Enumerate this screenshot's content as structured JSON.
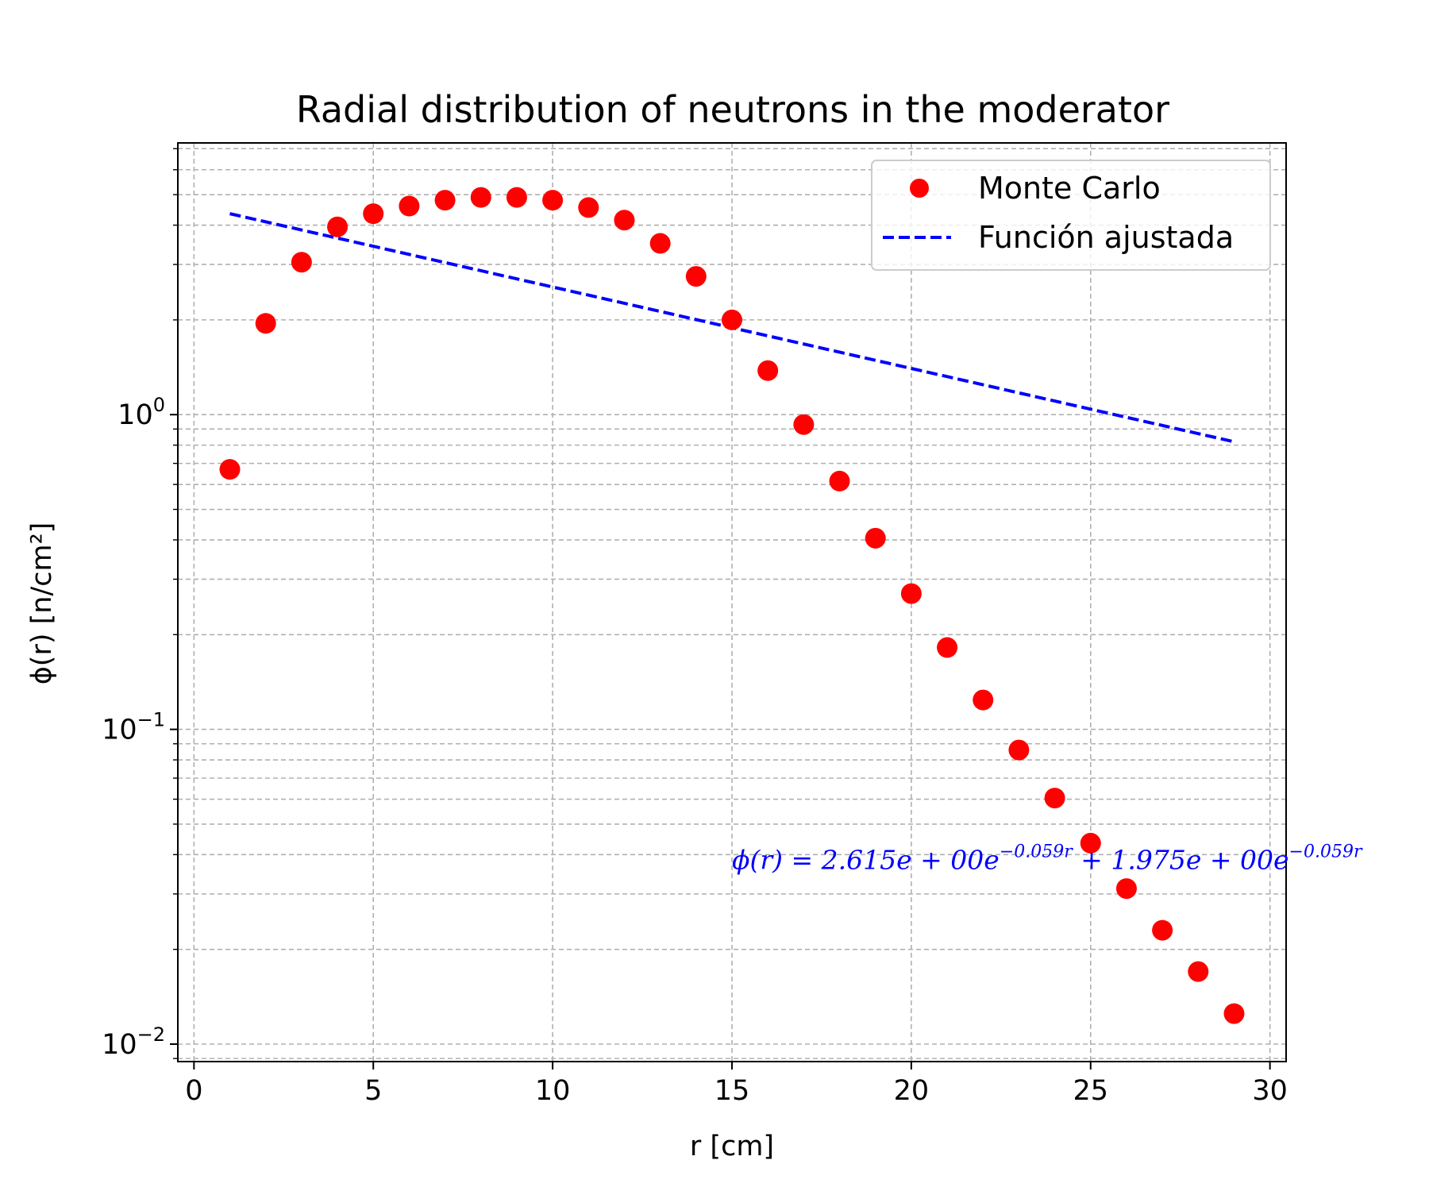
{
  "chart_data": {
    "type": "scatter",
    "title": "Radial distribution of neutrons in the moderator",
    "xlabel": "r [cm]",
    "ylabel": "ϕ(r) [n/cm²]",
    "xlim": [
      -0.45,
      30.45
    ],
    "ylim": [
      0.0088,
      7.3
    ],
    "yscale": "log",
    "grid": true,
    "legend_position": "top-right",
    "x_ticks": [
      0,
      5,
      10,
      15,
      20,
      25,
      30
    ],
    "x_tick_labels": [
      "0",
      "5",
      "10",
      "15",
      "20",
      "25",
      "30"
    ],
    "y_ticks": [
      0.01,
      0.1,
      1
    ],
    "y_tick_labels": [
      "10",
      "10",
      "10"
    ],
    "y_tick_exponents": [
      "−2",
      "−1",
      "0"
    ],
    "series": [
      {
        "name": "Monte Carlo",
        "kind": "points",
        "color": "#ff0000",
        "x": [
          1,
          2,
          3,
          4,
          5,
          6,
          7,
          8,
          9,
          10,
          11,
          12,
          13,
          14,
          15,
          16,
          17,
          18,
          19,
          20,
          21,
          22,
          23,
          24,
          25,
          26,
          27,
          28,
          29
        ],
        "y": [
          0.67,
          1.95,
          3.05,
          3.95,
          4.35,
          4.6,
          4.8,
          4.9,
          4.9,
          4.8,
          4.55,
          4.15,
          3.5,
          2.75,
          2.0,
          1.38,
          0.93,
          0.615,
          0.405,
          0.27,
          0.182,
          0.124,
          0.086,
          0.0605,
          0.0435,
          0.0312,
          0.023,
          0.017,
          0.0125
        ]
      },
      {
        "name": "Función ajustada",
        "kind": "dashed-line",
        "color": "#0000ff",
        "x": [
          1,
          29
        ],
        "y": [
          4.35,
          0.82
        ]
      }
    ],
    "annotation": {
      "color": "#0000ff",
      "x": 15,
      "y": 0.036,
      "parts": [
        {
          "t": "ϕ(r) = 2.615e + 00e"
        },
        {
          "t": "−0.059r",
          "sup": true
        },
        {
          "t": " + 1.975e + 00e"
        },
        {
          "t": "−0.059r",
          "sup": true
        }
      ]
    }
  }
}
